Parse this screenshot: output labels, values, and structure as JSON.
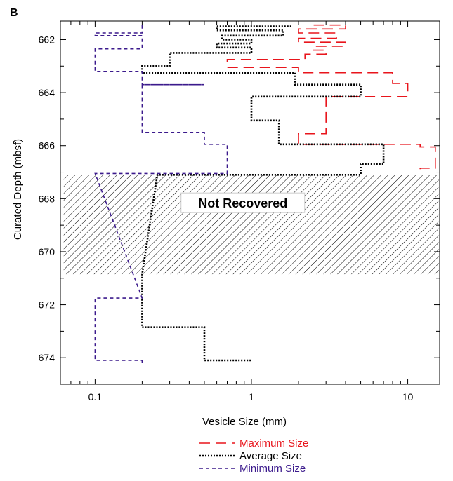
{
  "chart_data": {
    "type": "line",
    "panel_label": "B",
    "xlabel": "Vesicle Size (mm)",
    "ylabel": "Curated Depth (mbsf)",
    "xscale": "log",
    "xlim": [
      0.06,
      16
    ],
    "ylim": [
      675,
      661.3
    ],
    "y_inverted": true,
    "x_ticks": [
      0.1,
      1,
      10
    ],
    "x_tick_labels": [
      "0.1",
      "1",
      "10"
    ],
    "y_ticks": [
      662,
      664,
      666,
      668,
      670,
      672,
      674
    ],
    "y_tick_labels": [
      "662",
      "664",
      "666",
      "668",
      "670",
      "672",
      "674"
    ],
    "grid": false,
    "legend_position": "bottom-center",
    "not_recovered": {
      "label": "Not Recovered",
      "depth_range": [
        667.1,
        670.85
      ],
      "x_range": [
        0.06,
        16
      ]
    },
    "series": [
      {
        "name": "Maximum Size",
        "color": "#e8151c",
        "dash": "long",
        "points": [
          [
            2.5,
            661.45
          ],
          [
            4,
            661.45
          ],
          [
            4,
            661.6
          ],
          [
            2,
            661.6
          ],
          [
            2,
            661.75
          ],
          [
            3.5,
            661.75
          ],
          [
            3.5,
            661.95
          ],
          [
            2,
            661.95
          ],
          [
            2,
            662.1
          ],
          [
            4,
            662.1
          ],
          [
            4,
            662.25
          ],
          [
            2.5,
            662.25
          ],
          [
            2.5,
            662.4
          ],
          [
            3,
            662.4
          ],
          [
            3,
            662.55
          ],
          [
            2.2,
            662.55
          ],
          [
            2.2,
            662.75
          ],
          [
            0.7,
            662.75
          ],
          [
            0.7,
            663.05
          ],
          [
            2,
            663.05
          ],
          [
            2,
            663.25
          ],
          [
            8,
            663.25
          ],
          [
            8,
            663.65
          ],
          [
            10,
            663.65
          ],
          [
            10,
            664.15
          ],
          [
            3,
            664.15
          ],
          [
            3,
            665.55
          ],
          [
            2,
            665.55
          ],
          [
            2,
            665.95
          ],
          [
            12,
            665.95
          ],
          [
            12,
            666.05
          ],
          [
            15,
            666.05
          ],
          [
            15,
            666.85
          ],
          [
            12,
            666.85
          ],
          [
            12,
            667.1
          ]
        ]
      },
      {
        "name": "Average Size",
        "color": "#000000",
        "dash": "dotted",
        "points": [
          [
            1.8,
            661.5
          ],
          [
            0.6,
            661.5
          ],
          [
            0.6,
            661.65
          ],
          [
            1.6,
            661.65
          ],
          [
            1.6,
            661.85
          ],
          [
            0.65,
            661.85
          ],
          [
            0.65,
            662.0
          ],
          [
            1.0,
            662.0
          ],
          [
            1.0,
            662.15
          ],
          [
            0.6,
            662.15
          ],
          [
            0.6,
            662.3
          ],
          [
            1.0,
            662.3
          ],
          [
            1.0,
            662.5
          ],
          [
            0.3,
            662.5
          ],
          [
            0.3,
            663.0
          ],
          [
            0.2,
            663.0
          ],
          [
            0.2,
            663.25
          ],
          [
            1.9,
            663.25
          ],
          [
            1.9,
            663.7
          ],
          [
            5,
            663.7
          ],
          [
            5,
            664.15
          ],
          [
            1.0,
            664.15
          ],
          [
            1.0,
            665.05
          ],
          [
            1.5,
            665.05
          ],
          [
            1.5,
            665.95
          ],
          [
            7,
            665.95
          ],
          [
            7,
            666.7
          ],
          [
            5,
            666.7
          ],
          [
            5,
            667.1
          ],
          [
            0.25,
            667.1
          ],
          [
            0.2,
            670.85
          ],
          [
            0.2,
            672.85
          ],
          [
            0.5,
            672.85
          ],
          [
            0.5,
            674.1
          ],
          [
            1.0,
            674.1
          ]
        ]
      },
      {
        "name": "Minimum Size",
        "color": "#3b1a8c",
        "dash": "short",
        "points": [
          [
            0.2,
            661.45
          ],
          [
            0.2,
            661.75
          ],
          [
            0.1,
            661.75
          ],
          [
            0.1,
            661.85
          ],
          [
            0.2,
            661.85
          ],
          [
            0.2,
            662.35
          ],
          [
            0.1,
            662.35
          ],
          [
            0.1,
            663.2
          ],
          [
            0.2,
            663.2
          ],
          [
            0.2,
            663.7
          ],
          [
            0.5,
            663.7
          ],
          [
            0.5,
            663.7
          ],
          [
            0.2,
            663.7
          ],
          [
            0.2,
            665.5
          ],
          [
            0.5,
            665.5
          ],
          [
            0.5,
            665.95
          ],
          [
            0.7,
            665.95
          ],
          [
            0.7,
            667.05
          ],
          [
            0.1,
            667.05
          ],
          [
            0.2,
            671.75
          ],
          [
            0.1,
            671.75
          ],
          [
            0.1,
            674.1
          ],
          [
            0.2,
            674.1
          ],
          [
            0.2,
            674.25
          ]
        ]
      }
    ]
  }
}
